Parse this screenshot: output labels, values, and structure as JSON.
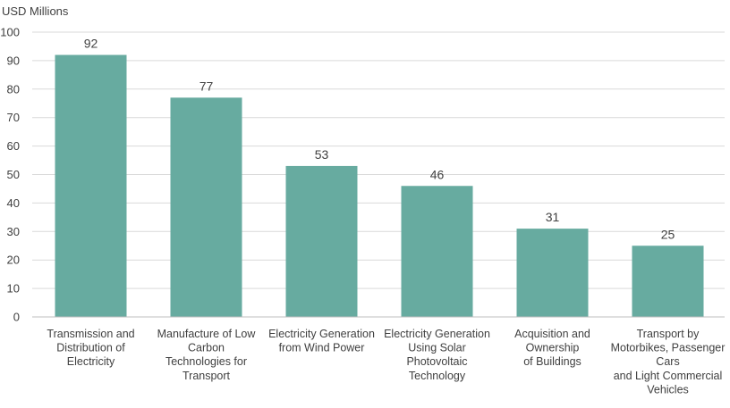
{
  "chart_data": {
    "type": "bar",
    "ylabel": "USD Millions",
    "categories": [
      "Transmission and\nDistribution of\nElectricity",
      "Manufacture of Low\nCarbon\nTechnologies for\nTransport",
      "Electricity Generation\nfrom Wind Power",
      "Electricity Generation\nUsing Solar\nPhotovoltaic\nTechnology",
      "Acquisition and\nOwnership\nof Buildings",
      "Transport by\nMotorbikes, Passenger\nCars\nand Light Commercial\nVehicles"
    ],
    "values": [
      92,
      77,
      53,
      46,
      31,
      25
    ],
    "data_labels": [
      "92",
      "77",
      "53",
      "46",
      "31",
      "25"
    ],
    "y_ticks": [
      "0",
      "10",
      "20",
      "30",
      "40",
      "50",
      "60",
      "70",
      "80",
      "90",
      "100"
    ],
    "ylim": [
      0,
      100
    ],
    "grid": true,
    "legend": "none",
    "bar_color": "#67aba0",
    "grid_color": "#d9d9d9",
    "axis_color": "#bfbfbf",
    "text_color": "#404040"
  }
}
